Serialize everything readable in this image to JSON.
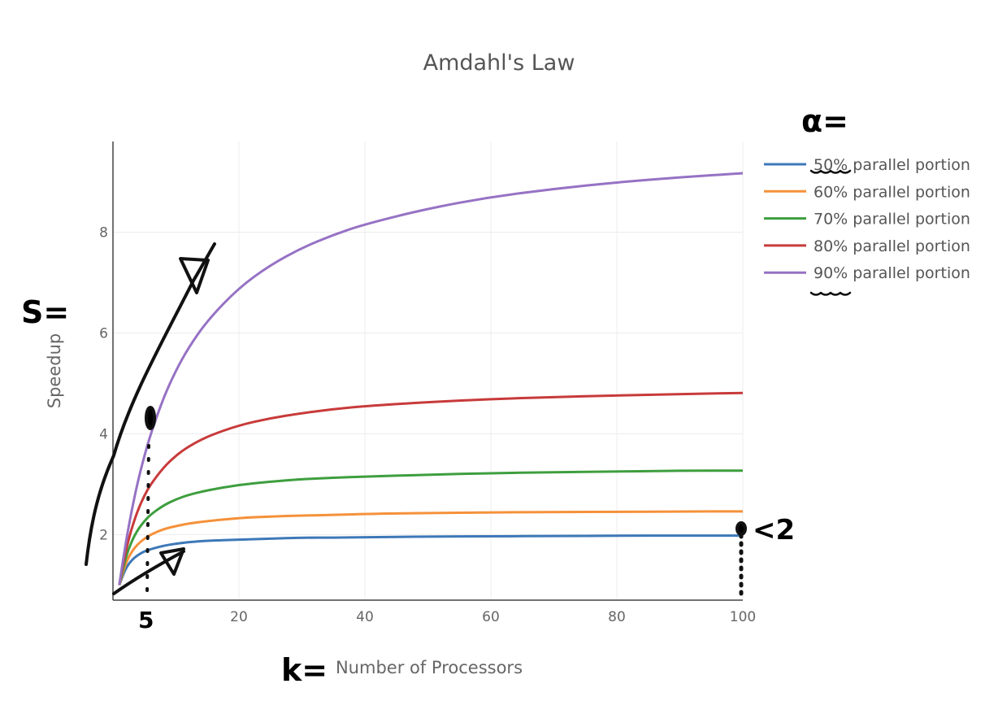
{
  "chart_data": {
    "type": "line",
    "title": "Amdahl's Law",
    "xlabel": "Number of Processors",
    "ylabel": "Speedup",
    "xlim": [
      0,
      100
    ],
    "ylim": [
      0.7,
      9.8
    ],
    "x_ticks": [
      20,
      40,
      60,
      80,
      100
    ],
    "y_ticks": [
      2,
      4,
      6,
      8
    ],
    "grid": true,
    "legend_position": "top-right",
    "x": [
      1,
      2,
      3,
      4,
      5,
      6,
      8,
      10,
      12,
      15,
      20,
      25,
      30,
      35,
      40,
      50,
      60,
      70,
      80,
      90,
      100
    ],
    "series": [
      {
        "name": "50% parallel portion",
        "color": "#3d78b8",
        "values": [
          1.0,
          1.33,
          1.5,
          1.6,
          1.67,
          1.71,
          1.78,
          1.82,
          1.85,
          1.88,
          1.9,
          1.92,
          1.94,
          1.94,
          1.95,
          1.96,
          1.97,
          1.97,
          1.98,
          1.98,
          1.98
        ]
      },
      {
        "name": "60% parallel portion",
        "color": "#f5913a",
        "values": [
          1.0,
          1.43,
          1.67,
          1.82,
          1.92,
          2.0,
          2.11,
          2.17,
          2.22,
          2.27,
          2.33,
          2.36,
          2.38,
          2.39,
          2.41,
          2.43,
          2.44,
          2.45,
          2.45,
          2.46,
          2.46
        ]
      },
      {
        "name": "70% parallel portion",
        "color": "#3e9e3e",
        "values": [
          1.0,
          1.54,
          1.88,
          2.11,
          2.27,
          2.4,
          2.58,
          2.7,
          2.79,
          2.88,
          2.99,
          3.05,
          3.1,
          3.13,
          3.15,
          3.19,
          3.22,
          3.24,
          3.25,
          3.27,
          3.27
        ]
      },
      {
        "name": "80% parallel portion",
        "color": "#c83a3a",
        "values": [
          1.0,
          1.67,
          2.14,
          2.5,
          2.78,
          3.0,
          3.33,
          3.57,
          3.75,
          3.95,
          4.17,
          4.31,
          4.41,
          4.49,
          4.55,
          4.63,
          4.69,
          4.73,
          4.76,
          4.79,
          4.81
        ]
      },
      {
        "name": "90% parallel portion",
        "color": "#9672c4",
        "values": [
          1.0,
          1.82,
          2.5,
          3.08,
          3.57,
          4.0,
          4.71,
          5.26,
          5.71,
          6.25,
          6.9,
          7.35,
          7.69,
          7.95,
          8.16,
          8.47,
          8.7,
          8.86,
          8.99,
          9.09,
          9.17
        ]
      }
    ],
    "annotations": {
      "speedup_symbol": "S=",
      "alpha_symbol": "α=",
      "k_symbol": "k=",
      "x_mark": "5",
      "limit_mark": "<2"
    }
  }
}
